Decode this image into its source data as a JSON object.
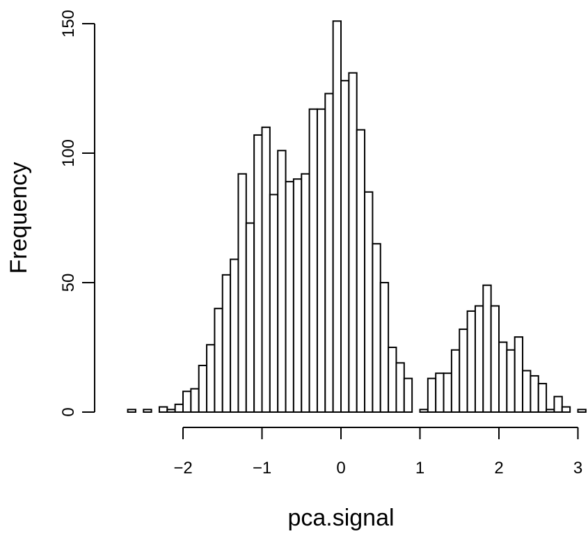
{
  "chart_data": {
    "type": "bar",
    "title": "",
    "xlabel": "pca.signal",
    "ylabel": "Frequency",
    "bin_width": 0.1,
    "bins_start": [
      -2.7,
      -2.6,
      -2.5,
      -2.4,
      -2.3,
      -2.2,
      -2.1,
      -2.0,
      -1.9,
      -1.8,
      -1.7,
      -1.6,
      -1.5,
      -1.4,
      -1.3,
      -1.2,
      -1.1,
      -1.0,
      -0.9,
      -0.8,
      -0.7,
      -0.6,
      -0.5,
      -0.4,
      -0.3,
      -0.2,
      -0.1,
      0.0,
      0.1,
      0.2,
      0.3,
      0.4,
      0.5,
      0.6,
      0.7,
      0.8,
      0.9,
      1.0,
      1.1,
      1.2,
      1.3,
      1.4,
      1.5,
      1.6,
      1.7,
      1.8,
      1.9,
      2.0,
      2.1,
      2.2,
      2.3,
      2.4,
      2.5,
      2.6,
      2.7,
      2.8,
      2.9,
      3.0
    ],
    "values": [
      1,
      0,
      1,
      0,
      2,
      1,
      3,
      8,
      9,
      18,
      26,
      40,
      53,
      59,
      92,
      73,
      107,
      110,
      84,
      101,
      89,
      90,
      92,
      117,
      117,
      123,
      151,
      128,
      131,
      109,
      85,
      65,
      50,
      25,
      19,
      13,
      0,
      1,
      13,
      15,
      15,
      24,
      32,
      39,
      41,
      49,
      41,
      27,
      24,
      29,
      16,
      14,
      11,
      1,
      6,
      2,
      0,
      1
    ],
    "xlim": [
      -2.7,
      3.1
    ],
    "ylim": [
      0,
      151
    ],
    "x_ticks": [
      "−2",
      "−1",
      "0",
      "1",
      "2",
      "3"
    ],
    "x_tick_values": [
      -2,
      -1,
      0,
      1,
      2,
      3
    ],
    "y_ticks": [
      "0",
      "50",
      "100",
      "150"
    ],
    "y_tick_values": [
      0,
      50,
      100,
      150
    ],
    "grid": false,
    "legend": "none"
  }
}
